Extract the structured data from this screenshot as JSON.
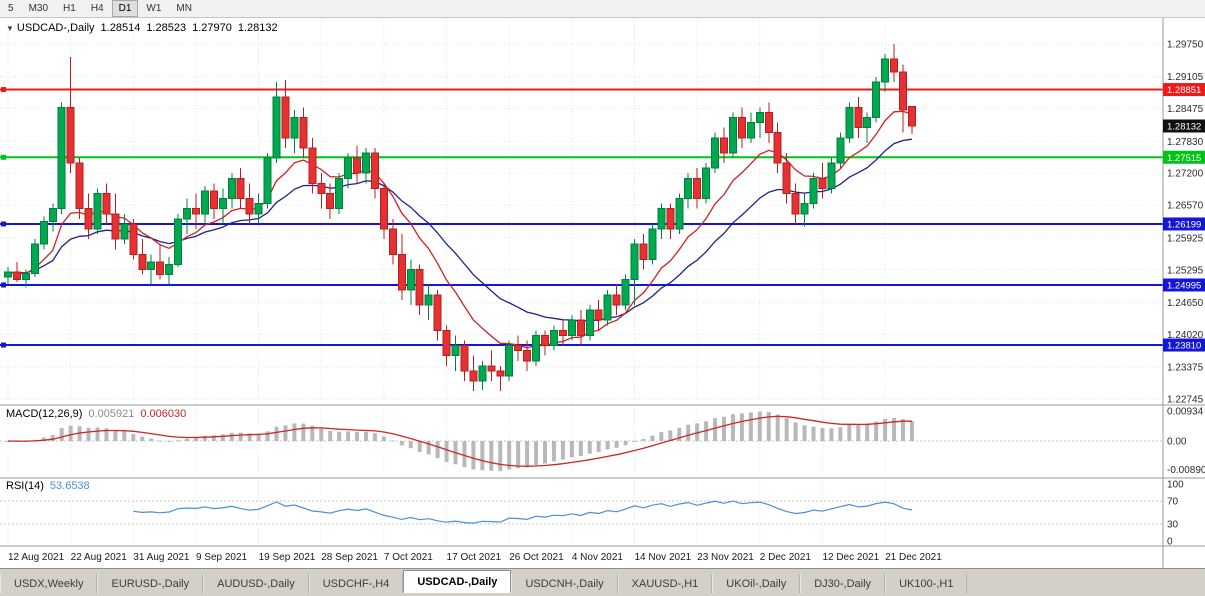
{
  "toolbar": {
    "timeframes": [
      {
        "label": "5",
        "active": false
      },
      {
        "label": "M30",
        "active": false
      },
      {
        "label": "H1",
        "active": false
      },
      {
        "label": "H4",
        "active": false
      },
      {
        "label": "D1",
        "active": true
      },
      {
        "label": "W1",
        "active": false
      },
      {
        "label": "MN",
        "active": false
      }
    ]
  },
  "chart_header": {
    "symbol_period": "USDCAD-,Daily",
    "open": "1.28514",
    "high": "1.28523",
    "low": "1.27970",
    "close": "1.28132"
  },
  "indicators": {
    "macd": {
      "label": "MACD(12,26,9)",
      "value_main": "0.005921",
      "value_signal": "0.006030",
      "axis_ticks": [
        {
          "label": "0.00934",
          "value": 0.00934
        },
        {
          "label": "0.00",
          "value": 0
        },
        {
          "label": "-0.00890",
          "value": -0.0089
        }
      ]
    },
    "rsi": {
      "label": "RSI(14)",
      "value": "53.6538",
      "axis_ticks": [
        {
          "label": "100",
          "value": 100
        },
        {
          "label": "70",
          "value": 70
        },
        {
          "label": "30",
          "value": 30
        },
        {
          "label": "0",
          "value": 0
        }
      ],
      "level_lines": [
        70,
        30
      ]
    }
  },
  "price_axis": {
    "ticks": [
      1.2975,
      1.29105,
      1.28475,
      1.2783,
      1.272,
      1.2657,
      1.25925,
      1.25295,
      1.2465,
      1.2402,
      1.23375,
      1.22745
    ]
  },
  "levels": [
    {
      "label": "1.28851",
      "value": 1.28851,
      "color": "#f01818"
    },
    {
      "label": "1.27515",
      "value": 1.27515,
      "color": "#00c318"
    },
    {
      "label": "1.26199",
      "value": 1.26199,
      "color": "#1515d8"
    },
    {
      "label": "1.24995",
      "value": 1.24995,
      "color": "#1515d8"
    },
    {
      "label": "1.23810",
      "value": 1.2381,
      "color": "#1515d8"
    }
  ],
  "current_price": {
    "label": "1.28132",
    "value": 1.28132,
    "bg": "#101010"
  },
  "x_axis": {
    "labels": [
      "12 Aug 2021",
      "22 Aug 2021",
      "31 Aug 2021",
      "9 Sep 2021",
      "19 Sep 2021",
      "28 Sep 2021",
      "7 Oct 2021",
      "17 Oct 2021",
      "26 Oct 2021",
      "4 Nov 2021",
      "14 Nov 2021",
      "23 Nov 2021",
      "2 Dec 2021",
      "12 Dec 2021",
      "21 Dec 2021"
    ],
    "label_every": 7
  },
  "chart_data": {
    "type": "candlestick",
    "title": "USDCAD-,Daily",
    "symbol": "USDCAD",
    "timeframe": "Daily",
    "ylim": [
      1.225,
      1.301
    ],
    "grid": true,
    "overlays": [
      {
        "name": "ma-fast",
        "type": "ema",
        "period": 10,
        "color": "#cc2222"
      },
      {
        "name": "ma-slow",
        "type": "ema",
        "period": 21,
        "color": "#20208c"
      }
    ],
    "sub_panels": [
      {
        "name": "MACD",
        "params": [
          12,
          26,
          9
        ],
        "hist_color": "#b8b8b8",
        "signal_color": "#cc2626"
      },
      {
        "name": "RSI",
        "params": [
          14
        ],
        "line_color": "#4a90d9",
        "levels": [
          70,
          30
        ]
      }
    ],
    "candles": [
      [
        1.2515,
        1.2535,
        1.25,
        1.2525
      ],
      [
        1.2525,
        1.2545,
        1.2505,
        1.251
      ],
      [
        1.251,
        1.253,
        1.2495,
        1.2522
      ],
      [
        1.2522,
        1.259,
        1.2515,
        1.258
      ],
      [
        1.258,
        1.2635,
        1.257,
        1.2625
      ],
      [
        1.2625,
        1.266,
        1.2605,
        1.265
      ],
      [
        1.265,
        1.286,
        1.264,
        1.285
      ],
      [
        1.285,
        1.2949,
        1.272,
        1.274
      ],
      [
        1.274,
        1.275,
        1.263,
        1.265
      ],
      [
        1.265,
        1.268,
        1.259,
        1.261
      ],
      [
        1.261,
        1.269,
        1.26,
        1.268
      ],
      [
        1.268,
        1.27,
        1.262,
        1.264
      ],
      [
        1.264,
        1.268,
        1.257,
        1.259
      ],
      [
        1.259,
        1.264,
        1.258,
        1.262
      ],
      [
        1.262,
        1.263,
        1.255,
        1.256
      ],
      [
        1.256,
        1.259,
        1.252,
        1.253
      ],
      [
        1.253,
        1.256,
        1.25,
        1.2545
      ],
      [
        1.2545,
        1.258,
        1.251,
        1.252
      ],
      [
        1.252,
        1.2555,
        1.25,
        1.254
      ],
      [
        1.254,
        1.264,
        1.2535,
        1.263
      ],
      [
        1.263,
        1.267,
        1.26,
        1.265
      ],
      [
        1.265,
        1.268,
        1.261,
        1.264
      ],
      [
        1.264,
        1.2695,
        1.262,
        1.2685
      ],
      [
        1.2685,
        1.27,
        1.263,
        1.265
      ],
      [
        1.265,
        1.269,
        1.262,
        1.267
      ],
      [
        1.267,
        1.272,
        1.265,
        1.271
      ],
      [
        1.271,
        1.273,
        1.265,
        1.267
      ],
      [
        1.267,
        1.27,
        1.262,
        1.264
      ],
      [
        1.264,
        1.268,
        1.262,
        1.266
      ],
      [
        1.266,
        1.276,
        1.265,
        1.275
      ],
      [
        1.275,
        1.29,
        1.274,
        1.287
      ],
      [
        1.287,
        1.2904,
        1.277,
        1.279
      ],
      [
        1.279,
        1.2845,
        1.276,
        1.283
      ],
      [
        1.283,
        1.285,
        1.275,
        1.277
      ],
      [
        1.277,
        1.279,
        1.268,
        1.27
      ],
      [
        1.27,
        1.272,
        1.265,
        1.268
      ],
      [
        1.268,
        1.27,
        1.263,
        1.265
      ],
      [
        1.265,
        1.272,
        1.264,
        1.271
      ],
      [
        1.271,
        1.276,
        1.269,
        1.275
      ],
      [
        1.275,
        1.2775,
        1.27,
        1.272
      ],
      [
        1.272,
        1.277,
        1.27,
        1.276
      ],
      [
        1.276,
        1.277,
        1.267,
        1.269
      ],
      [
        1.269,
        1.27,
        1.259,
        1.261
      ],
      [
        1.261,
        1.263,
        1.254,
        1.256
      ],
      [
        1.256,
        1.26,
        1.247,
        1.249
      ],
      [
        1.249,
        1.255,
        1.246,
        1.253
      ],
      [
        1.253,
        1.254,
        1.244,
        1.246
      ],
      [
        1.246,
        1.25,
        1.243,
        1.248
      ],
      [
        1.248,
        1.249,
        1.239,
        1.241
      ],
      [
        1.241,
        1.242,
        1.234,
        1.236
      ],
      [
        1.236,
        1.24,
        1.233,
        1.238
      ],
      [
        1.238,
        1.239,
        1.231,
        1.233
      ],
      [
        1.233,
        1.236,
        1.229,
        1.231
      ],
      [
        1.231,
        1.235,
        1.2292,
        1.234
      ],
      [
        1.234,
        1.237,
        1.231,
        1.233
      ],
      [
        1.233,
        1.234,
        1.229,
        1.232
      ],
      [
        1.232,
        1.239,
        1.231,
        1.238
      ],
      [
        1.238,
        1.24,
        1.235,
        1.237
      ],
      [
        1.237,
        1.239,
        1.233,
        1.235
      ],
      [
        1.235,
        1.241,
        1.234,
        1.24
      ],
      [
        1.24,
        1.241,
        1.236,
        1.238
      ],
      [
        1.238,
        1.242,
        1.237,
        1.241
      ],
      [
        1.241,
        1.243,
        1.238,
        1.24
      ],
      [
        1.24,
        1.244,
        1.239,
        1.243
      ],
      [
        1.243,
        1.245,
        1.238,
        1.24
      ],
      [
        1.24,
        1.246,
        1.239,
        1.245
      ],
      [
        1.245,
        1.247,
        1.241,
        1.243
      ],
      [
        1.243,
        1.249,
        1.242,
        1.248
      ],
      [
        1.248,
        1.25,
        1.244,
        1.246
      ],
      [
        1.246,
        1.252,
        1.245,
        1.251
      ],
      [
        1.251,
        1.259,
        1.246,
        1.258
      ],
      [
        1.258,
        1.26,
        1.253,
        1.255
      ],
      [
        1.255,
        1.262,
        1.254,
        1.261
      ],
      [
        1.261,
        1.266,
        1.259,
        1.265
      ],
      [
        1.265,
        1.266,
        1.259,
        1.261
      ],
      [
        1.261,
        1.268,
        1.26,
        1.267
      ],
      [
        1.267,
        1.272,
        1.265,
        1.271
      ],
      [
        1.271,
        1.273,
        1.265,
        1.267
      ],
      [
        1.267,
        1.274,
        1.266,
        1.273
      ],
      [
        1.273,
        1.28,
        1.272,
        1.279
      ],
      [
        1.279,
        1.281,
        1.274,
        1.276
      ],
      [
        1.276,
        1.284,
        1.275,
        1.283
      ],
      [
        1.283,
        1.285,
        1.277,
        1.279
      ],
      [
        1.279,
        1.284,
        1.278,
        1.282
      ],
      [
        1.282,
        1.285,
        1.279,
        1.284
      ],
      [
        1.284,
        1.286,
        1.278,
        1.28
      ],
      [
        1.28,
        1.282,
        1.272,
        1.274
      ],
      [
        1.274,
        1.276,
        1.266,
        1.268
      ],
      [
        1.268,
        1.27,
        1.262,
        1.264
      ],
      [
        1.264,
        1.268,
        1.2615,
        1.266
      ],
      [
        1.266,
        1.272,
        1.265,
        1.271
      ],
      [
        1.271,
        1.274,
        1.267,
        1.269
      ],
      [
        1.269,
        1.275,
        1.268,
        1.274
      ],
      [
        1.274,
        1.28,
        1.273,
        1.279
      ],
      [
        1.279,
        1.286,
        1.278,
        1.285
      ],
      [
        1.285,
        1.287,
        1.279,
        1.281
      ],
      [
        1.281,
        1.284,
        1.278,
        1.283
      ],
      [
        1.283,
        1.291,
        1.282,
        1.29
      ],
      [
        1.29,
        1.2955,
        1.288,
        1.2945
      ],
      [
        1.2945,
        1.2975,
        1.29,
        1.292
      ],
      [
        1.292,
        1.2935,
        1.28,
        1.2845
      ],
      [
        1.28514,
        1.28523,
        1.2797,
        1.28132
      ]
    ]
  },
  "tabs": [
    {
      "label": "USDX,Weekly",
      "active": false
    },
    {
      "label": "EURUSD-,Daily",
      "active": false
    },
    {
      "label": "AUDUSD-,Daily",
      "active": false
    },
    {
      "label": "USDCHF-,H4",
      "active": false
    },
    {
      "label": "USDCAD-,Daily",
      "active": true
    },
    {
      "label": "USDCNH-,Daily",
      "active": false
    },
    {
      "label": "XAUUSD-,H1",
      "active": false
    },
    {
      "label": "UKOil-,Daily",
      "active": false
    },
    {
      "label": "DJ30-,Daily",
      "active": false
    },
    {
      "label": "UK100-,H1",
      "active": false
    }
  ],
  "colors": {
    "up": "#00a94f",
    "up_border": "#00813c",
    "down": "#e53131",
    "down_border": "#b71f1f",
    "grid": "#e4e4e4",
    "separator": "#9a9a9a",
    "axis_text": "#2c2c2c",
    "macd_hist": "#b8b8b8",
    "macd_signal": "#cc2626",
    "rsi_line": "#4a90d9",
    "ma_fast": "#cc2222",
    "ma_slow": "#20208c"
  }
}
